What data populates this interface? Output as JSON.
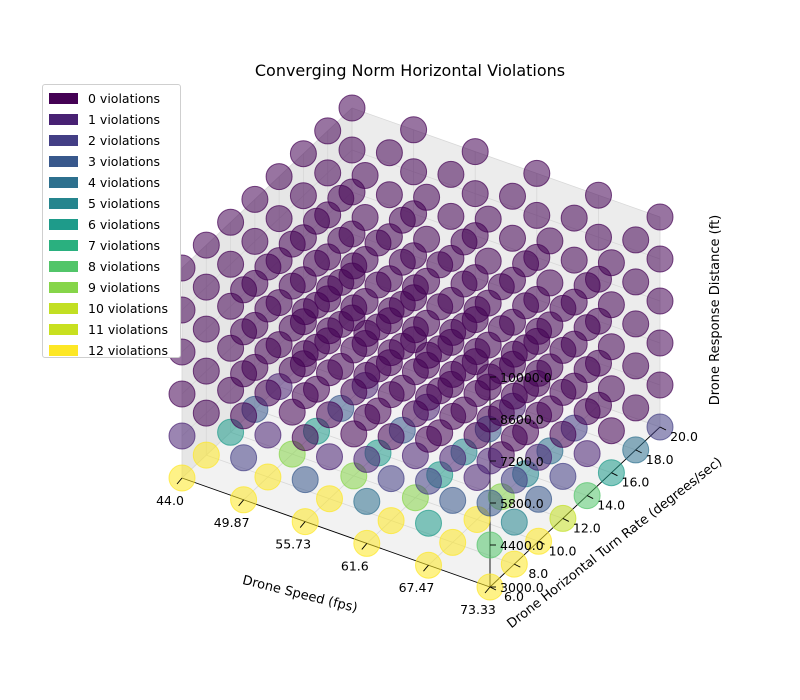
{
  "chart_data": {
    "type": "scatter",
    "title": "Converging Norm Horizontal Violations",
    "xlabel": "Drone Speed (fps)",
    "ylabel": "Drone Horizontal Turn Rate (degrees/sec)",
    "zlabel": "Drone Response Distance (ft)",
    "x_ticks": [
      "44.0",
      "49.87",
      "55.73",
      "61.6",
      "67.47",
      "73.33"
    ],
    "y_ticks": [
      "6.0",
      "8.0",
      "10.0",
      "12.0",
      "14.0",
      "16.0",
      "18.0",
      "20.0"
    ],
    "z_ticks": [
      "3000.0",
      "4400.0",
      "5800.0",
      "7200.0",
      "8600.0",
      "10000.0"
    ],
    "xlim": [
      44.0,
      73.33
    ],
    "ylim": [
      6.0,
      20.0
    ],
    "zlim": [
      3000.0,
      10000.0
    ],
    "legend": {
      "placement": "upper-left",
      "entries": [
        "0 violations",
        "1 violations",
        "2 violations",
        "3 violations",
        "4 violations",
        "5 violations",
        "6 violations",
        "7 violations",
        "8 violations",
        "9 violations",
        "10 violations",
        "11 violations",
        "12 violations"
      ],
      "colors": [
        "#440154",
        "#482173",
        "#433e85",
        "#38588c",
        "#2d708e",
        "#25858e",
        "#1e9b8a",
        "#2ab07f",
        "#52c569",
        "#86d549",
        "#c2df23",
        "#c8e020",
        "#fde725"
      ]
    },
    "grid": true,
    "point_x_values": [
      44.0,
      49.87,
      55.73,
      61.6,
      67.47,
      73.33
    ],
    "point_y_values": [
      6.0,
      8.0,
      10.0,
      12.0,
      14.0,
      16.0,
      18.0,
      20.0
    ],
    "point_z_values": [
      3000.0,
      4400.0,
      5800.0,
      7200.0,
      8600.0,
      10000.0
    ],
    "violations_by_z": [
      [
        [
          12,
          12,
          6,
          3,
          1,
          0,
          0,
          0
        ],
        [
          12,
          12,
          9,
          6,
          3,
          1,
          0,
          0
        ],
        [
          12,
          12,
          9,
          6,
          3,
          1,
          0,
          0
        ],
        [
          12,
          12,
          9,
          6,
          5,
          3,
          1,
          0
        ],
        [
          12,
          12,
          12,
          9,
          5,
          4,
          2,
          0
        ],
        [
          12,
          12,
          12,
          10,
          8,
          6,
          4,
          2
        ]
      ],
      [
        [
          1,
          0,
          0,
          0,
          0,
          0,
          0,
          0
        ],
        [
          2,
          1,
          0,
          0,
          0,
          0,
          0,
          0
        ],
        [
          3,
          1,
          0,
          0,
          0,
          0,
          0,
          0
        ],
        [
          4,
          2,
          1,
          0,
          0,
          0,
          0,
          0
        ],
        [
          6,
          3,
          1,
          0,
          0,
          0,
          0,
          0
        ],
        [
          8,
          5,
          3,
          2,
          1,
          0,
          0,
          0
        ]
      ],
      [
        [
          0,
          0,
          0,
          0,
          0,
          0,
          0,
          0
        ],
        [
          0,
          0,
          0,
          0,
          0,
          0,
          0,
          0
        ],
        [
          0,
          0,
          0,
          0,
          0,
          0,
          0,
          0
        ],
        [
          1,
          0,
          0,
          0,
          0,
          0,
          0,
          0
        ],
        [
          2,
          1,
          0,
          0,
          0,
          0,
          0,
          0
        ],
        [
          3,
          2,
          1,
          0,
          0,
          0,
          0,
          0
        ]
      ],
      [
        [
          0,
          0,
          0,
          0,
          0,
          0,
          0,
          0
        ],
        [
          0,
          0,
          0,
          0,
          0,
          0,
          0,
          0
        ],
        [
          0,
          0,
          0,
          0,
          0,
          0,
          0,
          0
        ],
        [
          0,
          0,
          0,
          0,
          0,
          0,
          0,
          0
        ],
        [
          0,
          0,
          0,
          0,
          0,
          0,
          0,
          0
        ],
        [
          1,
          0,
          0,
          0,
          0,
          0,
          0,
          0
        ]
      ],
      [
        [
          0,
          0,
          0,
          0,
          0,
          0,
          0,
          0
        ],
        [
          0,
          0,
          0,
          0,
          0,
          0,
          0,
          0
        ],
        [
          0,
          0,
          0,
          0,
          0,
          0,
          0,
          0
        ],
        [
          0,
          0,
          0,
          0,
          0,
          0,
          0,
          0
        ],
        [
          0,
          0,
          0,
          0,
          0,
          0,
          0,
          0
        ],
        [
          0,
          0,
          0,
          0,
          0,
          0,
          0,
          0
        ]
      ],
      [
        [
          0,
          0,
          0,
          0,
          0,
          0,
          0,
          0
        ],
        [
          0,
          0,
          0,
          0,
          0,
          0,
          0,
          0
        ],
        [
          0,
          0,
          0,
          0,
          0,
          0,
          0,
          0
        ],
        [
          0,
          0,
          0,
          0,
          0,
          0,
          0,
          0
        ],
        [
          0,
          0,
          0,
          0,
          0,
          0,
          0,
          0
        ],
        [
          0,
          0,
          0,
          0,
          0,
          0,
          0,
          0
        ]
      ]
    ]
  }
}
